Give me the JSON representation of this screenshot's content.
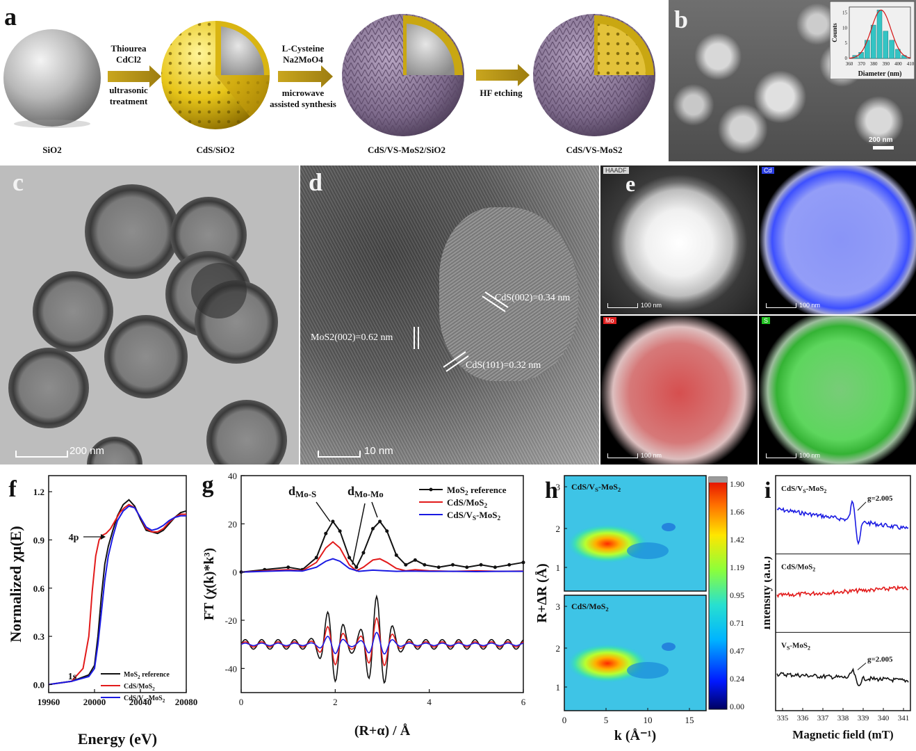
{
  "panels": {
    "a": {
      "label": "a",
      "step1_line1": "Thiourea",
      "step1_line2": "CdCl2",
      "step1_line3": "ultrasonic",
      "step1_line4": "treatment",
      "step2_line1": "L-Cysteine",
      "step2_line2": "Na2MoO4",
      "step2_line3": "microwave",
      "step2_line4": "assisted synthesis",
      "step3_line1": "HF etching",
      "stage1": "SiO2",
      "stage2": "CdS/SiO2",
      "stage3": "CdS/VS-MoS2/SiO2",
      "stage4": "CdS/VS-MoS2"
    },
    "b": {
      "label": "b",
      "scale": "200 nm",
      "inset": {
        "type": "bar",
        "xlabel": "Diameter (nm)",
        "ylabel": "Counts",
        "x_ticks": [
          "360",
          "370",
          "380",
          "390",
          "400",
          "410"
        ],
        "y_ticks": [
          "0",
          "5",
          "10",
          "15"
        ],
        "xlim": [
          360,
          410
        ],
        "ylim": [
          0,
          17
        ],
        "bins": [
          365,
          370,
          375,
          380,
          385,
          390,
          395,
          400,
          405
        ],
        "counts": [
          1,
          2,
          6,
          11,
          16,
          9,
          6,
          3,
          1
        ]
      }
    },
    "c": {
      "label": "c",
      "scale": "200 nm"
    },
    "d": {
      "label": "d",
      "scale": "10 nm",
      "ann1": "MoS2(002)=0.62 nm",
      "ann2": "CdS(002)=0.34 nm",
      "ann3": "CdS(101)=0.32 nm"
    },
    "e": {
      "label": "e",
      "tiles": [
        {
          "tag": "HAADF",
          "scale": "100 nm",
          "tag_color": "#cccccc"
        },
        {
          "tag": "Cd",
          "scale": "100 nm",
          "tag_color": "#2a3ee0"
        },
        {
          "tag": "Mo",
          "scale": "100 nm",
          "tag_color": "#e02020"
        },
        {
          "tag": "S",
          "scale": "100 nm",
          "tag_color": "#22c022"
        }
      ]
    },
    "f": {
      "label": "f",
      "annotation_4p": "4p",
      "annotation_1s": "1s"
    },
    "g": {
      "label": "g",
      "peak1": "dMo-S",
      "peak2": "dMo-Mo"
    },
    "h": {
      "label": "h",
      "map1_title": "CdS/VS-MoS2",
      "map2_title": "CdS/MoS2"
    },
    "i": {
      "label": "i",
      "trace1_label": "CdS/VS-MoS2",
      "trace2_label": "CdS/MoS2",
      "trace3_label": "VS-MoS2",
      "g_value_1": "g=2.005",
      "g_value_3": "g=2.005"
    }
  },
  "chart_data": [
    {
      "id": "f",
      "type": "line",
      "xlabel": "Energy (eV)",
      "ylabel": "Normalized χμ(E)",
      "xlim": [
        19960,
        20080
      ],
      "ylim": [
        -0.05,
        1.3
      ],
      "x_ticks": [
        "19960",
        "20000",
        "20040",
        "20080"
      ],
      "y_ticks": [
        "0.0",
        "0.3",
        "0.6",
        "0.9",
        "1.2"
      ],
      "legend_position": "bottom-right",
      "series": [
        {
          "name": "MoS2 reference",
          "color": "#111111",
          "x": [
            19960,
            19980,
            19995,
            20000,
            20003,
            20006,
            20009,
            20012,
            20016,
            20020,
            20025,
            20030,
            20035,
            20040,
            20045,
            20050,
            20055,
            20060,
            20065,
            20070,
            20075,
            20080
          ],
          "y": [
            0.0,
            0.02,
            0.06,
            0.12,
            0.3,
            0.55,
            0.75,
            0.86,
            0.96,
            1.05,
            1.12,
            1.15,
            1.11,
            1.03,
            0.96,
            0.95,
            0.94,
            0.96,
            1.0,
            1.04,
            1.07,
            1.08
          ]
        },
        {
          "name": "CdS/MoS2",
          "color": "#e21a1a",
          "x": [
            19960,
            19980,
            19990,
            19995,
            19998,
            20001,
            20004,
            20007,
            20010,
            20014,
            20018,
            20022,
            20026,
            20030,
            20035,
            20040,
            20045,
            20050,
            20055,
            20060,
            20065,
            20070,
            20075,
            20080
          ],
          "y": [
            0.0,
            0.02,
            0.1,
            0.3,
            0.58,
            0.8,
            0.9,
            0.93,
            0.94,
            0.97,
            1.02,
            1.07,
            1.1,
            1.12,
            1.1,
            1.04,
            0.97,
            0.95,
            0.95,
            0.97,
            1.01,
            1.04,
            1.06,
            1.06
          ]
        },
        {
          "name": "CdS/VS-MoS2",
          "color": "#1a1ae2",
          "x": [
            19960,
            19980,
            19995,
            20000,
            20003,
            20006,
            20009,
            20012,
            20016,
            20020,
            20025,
            20030,
            20035,
            20040,
            20045,
            20050,
            20055,
            20060,
            20065,
            20070,
            20075,
            20080
          ],
          "y": [
            0.0,
            0.02,
            0.05,
            0.1,
            0.25,
            0.45,
            0.65,
            0.8,
            0.92,
            1.02,
            1.08,
            1.11,
            1.1,
            1.04,
            0.98,
            0.96,
            0.97,
            0.99,
            1.02,
            1.04,
            1.05,
            1.05
          ]
        }
      ]
    },
    {
      "id": "g",
      "type": "line",
      "xlabel": "(R+α) / Å",
      "ylabel": "FT (χ(k)*k³)",
      "xlim": [
        0,
        6
      ],
      "ylim": [
        -50,
        40
      ],
      "x_ticks": [
        "0",
        "2",
        "4",
        "6"
      ],
      "y_ticks": [
        "-40",
        "-20",
        "0",
        "20",
        "40"
      ],
      "legend_position": "top-right",
      "series": [
        {
          "name": "MoS2 reference",
          "color": "#111111",
          "x": [
            0,
            0.5,
            1.0,
            1.3,
            1.6,
            1.8,
            1.95,
            2.1,
            2.3,
            2.45,
            2.6,
            2.8,
            2.95,
            3.1,
            3.3,
            3.5,
            3.7,
            3.9,
            4.2,
            4.5,
            4.8,
            5.1,
            5.4,
            5.7,
            6.0
          ],
          "y": [
            0,
            1,
            2,
            1,
            6,
            16,
            21,
            17,
            6,
            2,
            8,
            18,
            21,
            17,
            7,
            3,
            5,
            3,
            2,
            3,
            2,
            3,
            2,
            3,
            4
          ]
        },
        {
          "name": "CdS/MoS2",
          "color": "#e21a1a",
          "x": [
            0,
            0.5,
            1.0,
            1.3,
            1.6,
            1.8,
            1.95,
            2.1,
            2.3,
            2.45,
            2.6,
            2.8,
            2.95,
            3.1,
            3.3,
            3.5,
            3.7,
            4.0,
            4.5,
            5.0,
            5.5,
            6.0
          ],
          "y": [
            0,
            0.5,
            1,
            0.5,
            4,
            10,
            12.5,
            10,
            3,
            0.5,
            2,
            5,
            5.5,
            4,
            1.5,
            0.5,
            1,
            0.5,
            0.3,
            0.5,
            0.3,
            0.4
          ]
        },
        {
          "name": "CdS/VS-MoS2",
          "color": "#1a1ae2",
          "x": [
            0,
            0.5,
            1.0,
            1.3,
            1.6,
            1.8,
            1.95,
            2.1,
            2.3,
            2.5,
            2.8,
            3.0,
            3.3,
            3.6,
            4.0,
            4.5,
            5.0,
            5.5,
            6.0
          ],
          "y": [
            0,
            0.3,
            0.6,
            0.4,
            2,
            4.5,
            5.5,
            4.5,
            1.5,
            0.3,
            0.8,
            0.6,
            0.3,
            0.4,
            0.3,
            0.3,
            0.2,
            0.3,
            0.3
          ]
        }
      ]
    },
    {
      "id": "h",
      "type": "heatmap",
      "xlabel": "k (Å⁻¹)",
      "ylabel": "R+ΔR (Å)",
      "x_ticks": [
        "0",
        "5",
        "10",
        "15"
      ],
      "y_ticks": [
        "1",
        "2",
        "3"
      ],
      "xlim": [
        0,
        17
      ],
      "ylim": [
        0.6,
        3.4
      ],
      "colorbar_ticks": [
        "0.00",
        "0.24",
        "0.47",
        "0.71",
        "0.95",
        "1.19",
        "1.42",
        "1.66",
        "1.90"
      ]
    },
    {
      "id": "i",
      "type": "line",
      "xlabel": "Magnetic field (mT)",
      "ylabel": "Intensity (a.u.)",
      "x_ticks": [
        "335",
        "336",
        "337",
        "338",
        "339",
        "340",
        "341"
      ]
    }
  ]
}
